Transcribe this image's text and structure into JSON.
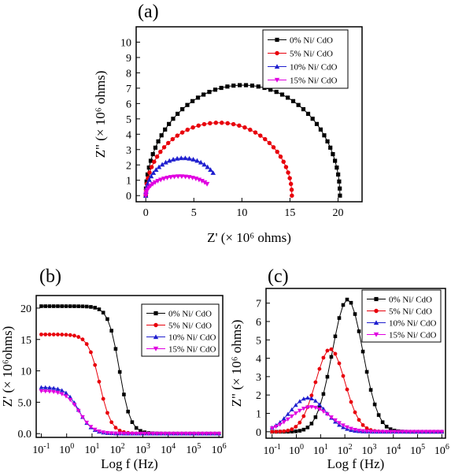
{
  "chart_data": [
    {
      "panel": "(a)",
      "type": "scatter",
      "xlabel": "Z' (× 10⁶ ohms)",
      "ylabel": "Z\" (× 10⁶ ohms)",
      "xlim": [
        -1,
        22.5
      ],
      "ylim": [
        -0.4,
        11
      ],
      "xticks": [
        0,
        5,
        10,
        15,
        20
      ],
      "yticks": [
        0,
        1,
        2,
        3,
        4,
        5,
        6,
        7,
        8,
        9,
        10
      ],
      "grid": false,
      "legend_position": "top-right",
      "series": [
        {
          "name": "0% Ni/ CdO",
          "color": "#000000",
          "marker": "square",
          "arc": {
            "start": 0,
            "end": 20.2,
            "center": 10.1,
            "radius": 10.1,
            "peak": 7.2,
            "n": 50
          }
        },
        {
          "name": "5% Ni/ CdO",
          "color": "#e8000b",
          "marker": "circle",
          "arc": {
            "start": 0,
            "end": 15.6,
            "center": 7.6,
            "radius": 7.6,
            "peak": 4.75,
            "n": 40
          }
        },
        {
          "name": "10% Ni/ CdO",
          "color": "#1f1fcf",
          "marker": "triangle-up",
          "arc": {
            "start": 0,
            "end": 7.2,
            "center": 3.9,
            "radius": 3.9,
            "peak": 2.45,
            "n": 30
          }
        },
        {
          "name": "15% Ni/ CdO",
          "color": "#e000e0",
          "marker": "triangle-down",
          "arc": {
            "start": 0,
            "end": 6.5,
            "center": 3.55,
            "radius": 3.55,
            "peak": 1.25,
            "n": 30
          }
        }
      ]
    },
    {
      "panel": "(b)",
      "type": "scatter",
      "xlabel": "Log f (Hz)",
      "ylabel": "Z' (× 10⁶ohms)",
      "x_scale": "log",
      "xlim_log10": [
        -1.2,
        6.15
      ],
      "ylim": [
        -0.6,
        22
      ],
      "xticks_log10": [
        -1,
        0,
        1,
        2,
        3,
        4,
        5,
        6
      ],
      "yticks": [
        0.0,
        5.0,
        10,
        15,
        20
      ],
      "ytick_labels": [
        "0.0",
        "5.0",
        "10",
        "15",
        "20"
      ],
      "grid": false,
      "legend_position": "top-right",
      "series": [
        {
          "name": "0% Ni/ CdO",
          "color": "#000000",
          "marker": "square",
          "plateau": 20.3,
          "f_half": 120,
          "slope": 1.0
        },
        {
          "name": "5% Ni/ CdO",
          "color": "#e8000b",
          "marker": "circle",
          "plateau": 15.8,
          "f_half": 20,
          "slope": 0.95
        },
        {
          "name": "10% Ni/ CdO",
          "color": "#1f1fcf",
          "marker": "triangle-up",
          "plateau": 7.4,
          "f_half": 3,
          "slope": 0.85
        },
        {
          "name": "15% Ni/ CdO",
          "color": "#e000e0",
          "marker": "triangle-down",
          "plateau": 6.8,
          "f_half": 3.2,
          "slope": 0.8
        }
      ]
    },
    {
      "panel": "(c)",
      "type": "scatter",
      "xlabel": "Log f (Hz)",
      "ylabel": "Z\" (× 10⁶ ohms)",
      "x_scale": "log",
      "xlim_log10": [
        -1.25,
        6.15
      ],
      "ylim": [
        -0.35,
        7.8
      ],
      "xticks_log10": [
        -1,
        0,
        1,
        2,
        3,
        4,
        5,
        6
      ],
      "yticks": [
        0,
        1,
        2,
        3,
        4,
        5,
        6,
        7
      ],
      "grid": false,
      "legend_position": "top-right",
      "series": [
        {
          "name": "0% Ni/ CdO",
          "color": "#000000",
          "marker": "square",
          "peak": 7.2,
          "f_peak": 130,
          "width": 1.05
        },
        {
          "name": "5% Ni/ CdO",
          "color": "#e8000b",
          "marker": "circle",
          "peak": 4.5,
          "f_peak": 25,
          "width": 1.0
        },
        {
          "name": "10% Ni/ CdO",
          "color": "#1f1fcf",
          "marker": "triangle-up",
          "peak": 1.85,
          "f_peak": 3,
          "width": 1.2
        },
        {
          "name": "15% Ni/ CdO",
          "color": "#e000e0",
          "marker": "triangle-down",
          "peak": 1.35,
          "f_peak": 4,
          "width": 1.35
        }
      ]
    }
  ]
}
